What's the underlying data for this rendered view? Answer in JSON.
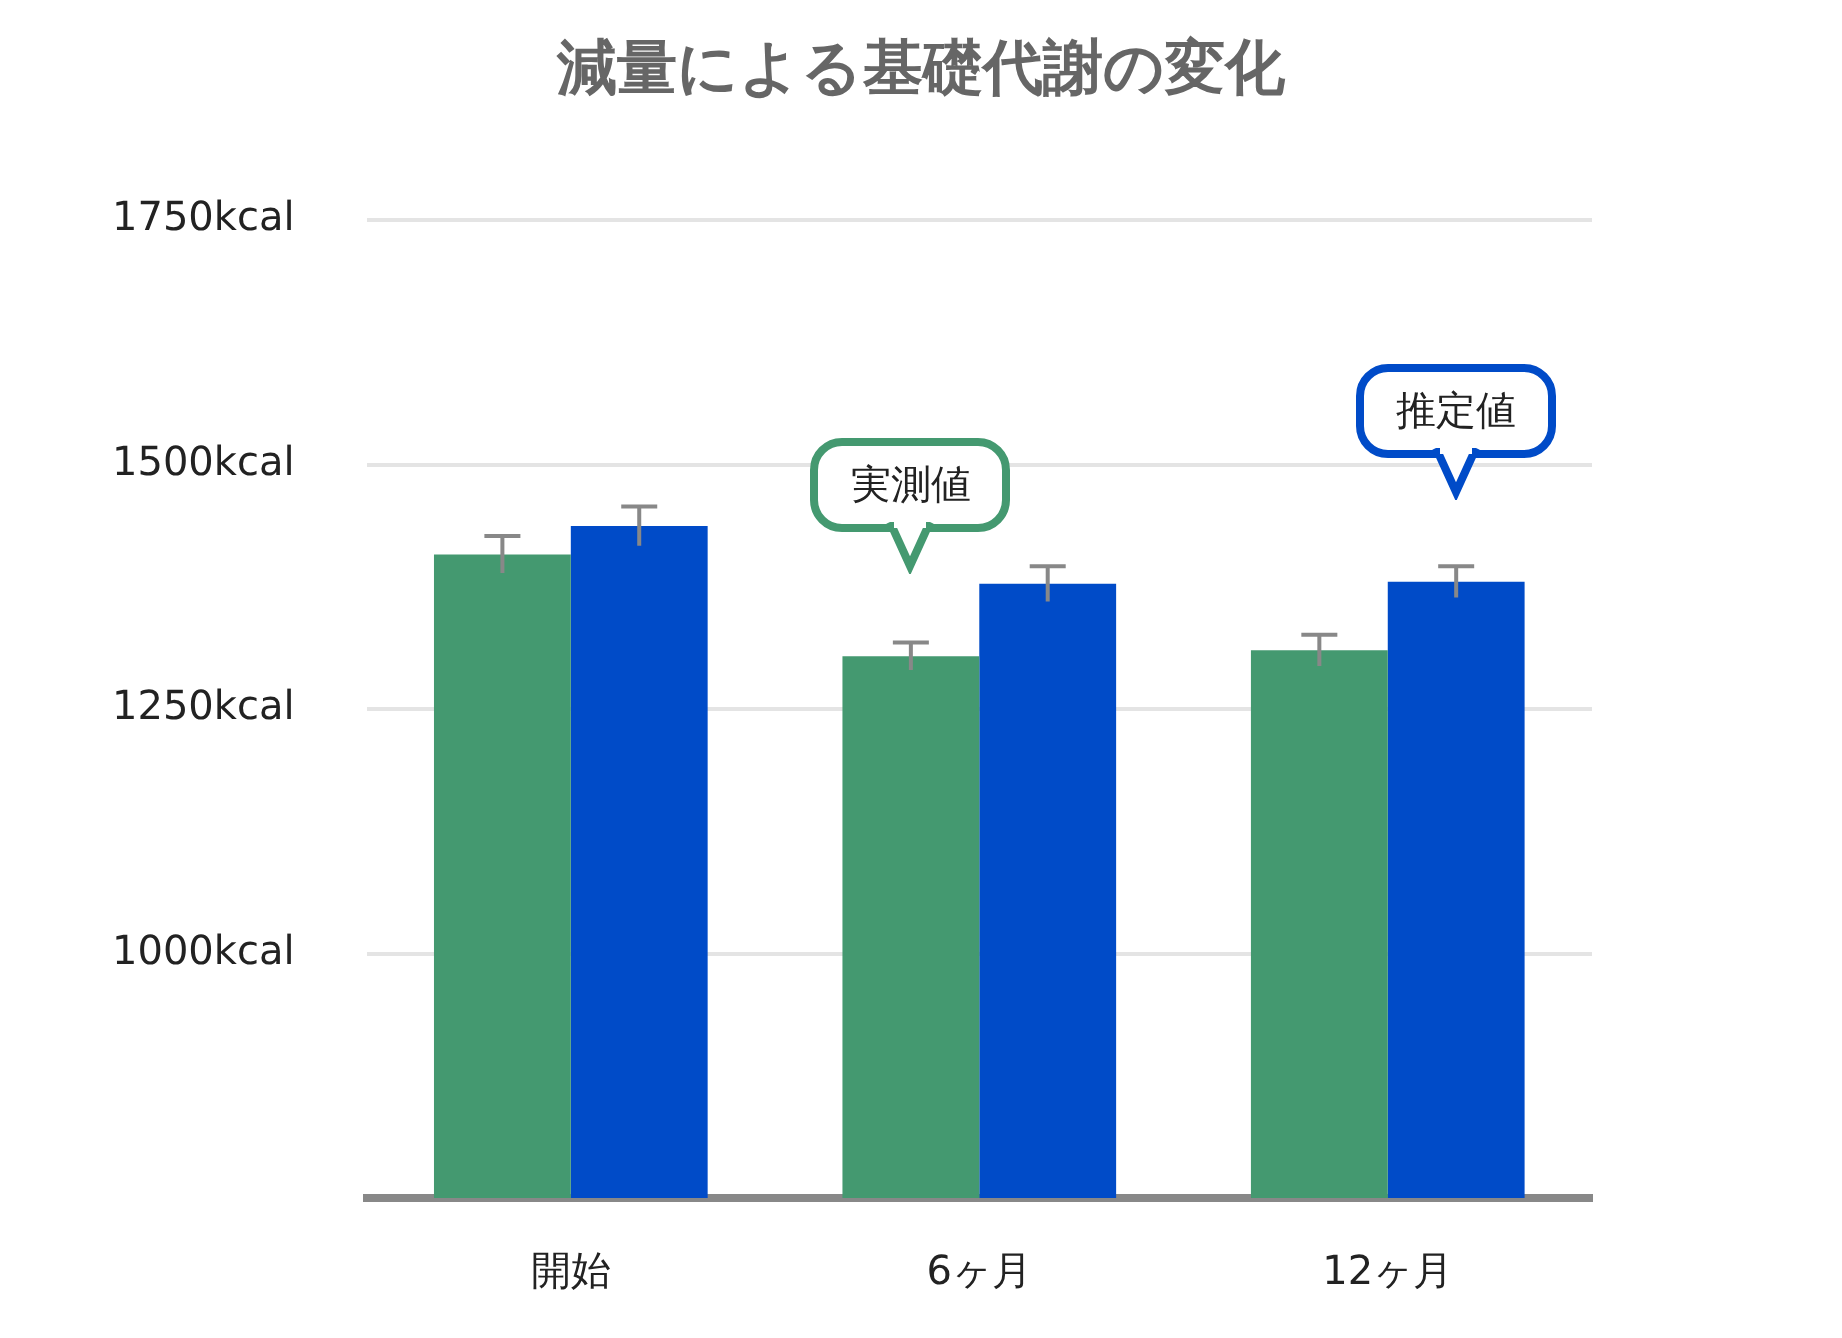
{
  "chart_data": {
    "type": "bar",
    "title": "減量による基礎代謝の変化",
    "categories": [
      "開始",
      "6ヶ月",
      "12ヶ月"
    ],
    "series": [
      {
        "name": "実測値",
        "color": "#449970",
        "values": [
          1408,
          1304,
          1310
        ],
        "errors": [
          19,
          14,
          16
        ]
      },
      {
        "name": "推定値",
        "color": "#004bc8",
        "values": [
          1437,
          1378,
          1380
        ],
        "errors": [
          20,
          18,
          16
        ]
      }
    ],
    "ylim": [
      750,
      1750
    ],
    "yticks": [
      {
        "value": 1000,
        "label": "1000kcal"
      },
      {
        "value": 1250,
        "label": "1250kcal"
      },
      {
        "value": 1500,
        "label": "1500kcal"
      },
      {
        "value": 1750,
        "label": "1750kcal"
      }
    ],
    "grid": "y",
    "legend": false
  }
}
